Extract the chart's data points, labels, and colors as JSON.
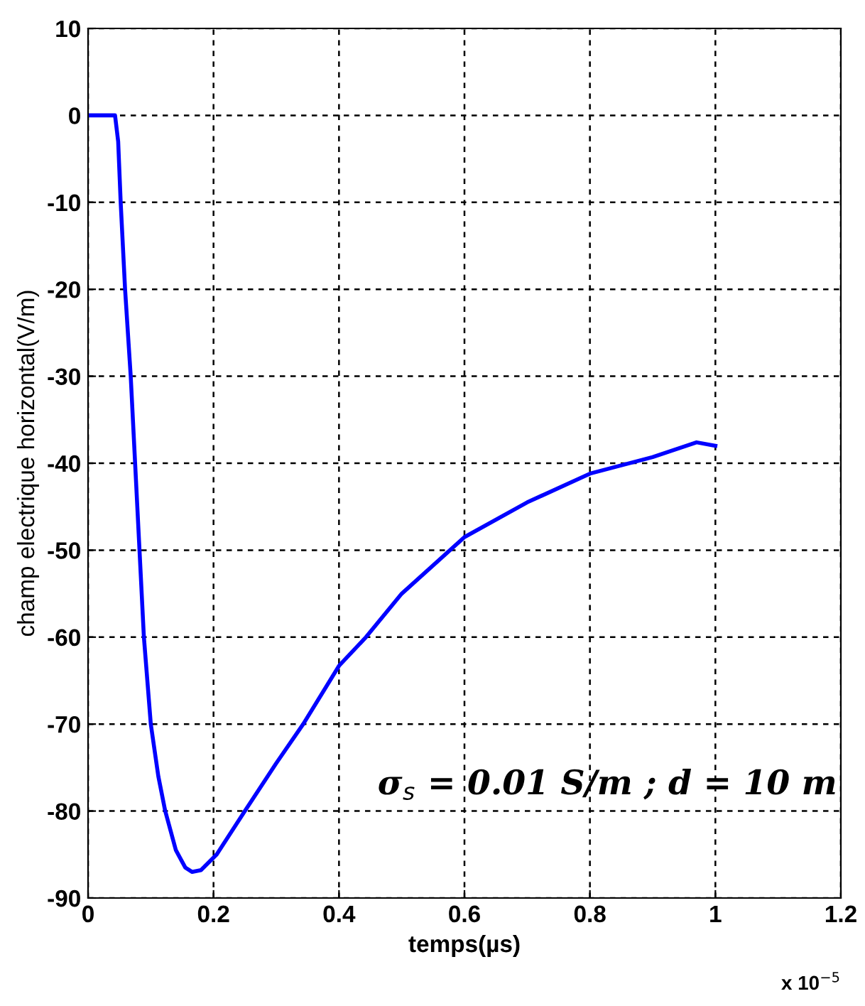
{
  "chart_data": {
    "type": "line",
    "xlabel": "temps(µs)",
    "ylabel": "champ electrique horizontal(V/m)",
    "annotations": [
      "x 10$^{−5}$",
      "σ$_{s}$ = 0.01 S/m ; d = 10 m"
    ],
    "x": [
      0,
      0.02,
      0.043,
      0.048,
      0.052,
      0.059,
      0.068,
      0.075,
      0.082,
      0.089,
      0.1,
      0.112,
      0.123,
      0.14,
      0.155,
      0.166,
      0.18,
      0.205,
      0.25,
      0.3,
      0.343,
      0.4,
      0.443,
      0.5,
      0.6,
      0.7,
      0.8,
      0.9,
      0.97,
      1.0
    ],
    "series": [
      {
        "color": "#0000ff",
        "values": [
          0,
          0,
          0,
          -3,
          -10,
          -20,
          -30,
          -40,
          -50,
          -60,
          -70,
          -76,
          -80,
          -84.5,
          -86.5,
          -87,
          -86.8,
          -85,
          -80,
          -74.5,
          -70,
          -63.3,
          -60,
          -55,
          -48.5,
          -44.5,
          -41.2,
          -39.3,
          -37.6,
          -38
        ]
      }
    ],
    "xlim": [
      0,
      1.2
    ],
    "ylim": [
      -90,
      10
    ],
    "xticks": [
      0,
      0.2,
      0.4,
      0.6,
      0.8,
      1,
      1.2
    ],
    "yticks": [
      -90,
      -80,
      -70,
      -60,
      -50,
      -40,
      -30,
      -20,
      -10,
      0,
      10
    ],
    "grid": true,
    "legend": false,
    "marker": "none",
    "line_style": "solid"
  }
}
